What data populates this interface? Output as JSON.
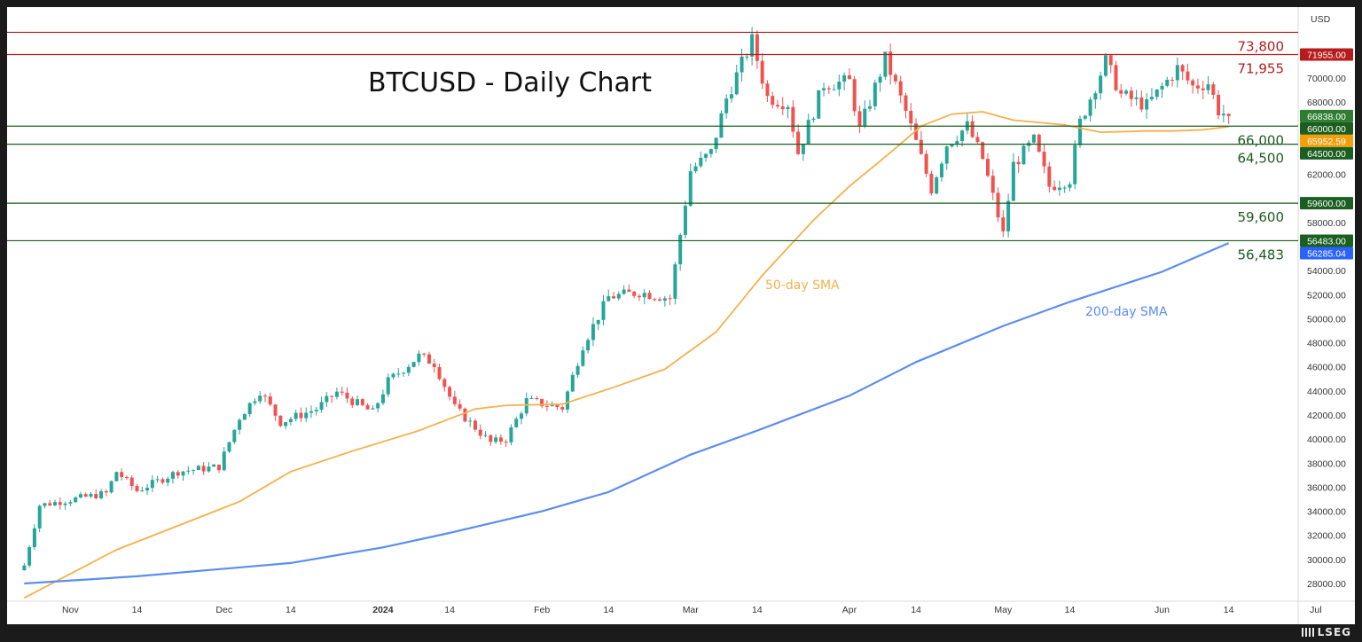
{
  "title": "BTCUSD - Daily Chart",
  "currency": "USD",
  "sma_labels": {
    "sma50": "50-day SMA",
    "sma200": "200-day SMA"
  },
  "colors": {
    "up": "#26a69a",
    "down": "#ef5350",
    "sma50": "#f5b04c",
    "sma200": "#5b8def",
    "resistance": "#b71c1c",
    "support": "#1b5e20"
  },
  "footer": {
    "brand": "LSEG"
  },
  "chart_data": {
    "type": "candlestick",
    "title": "BTCUSD - Daily Chart",
    "y_axis": {
      "unit": "USD",
      "range": [
        26600,
        75600
      ],
      "ticks": [
        "28000.00",
        "30000.00",
        "32000.00",
        "34000.00",
        "36000.00",
        "38000.00",
        "40000.00",
        "42000.00",
        "44000.00",
        "46000.00",
        "48000.00",
        "50000.00",
        "52000.00",
        "54000.00",
        "58000.00",
        "62000.00",
        "68000.00",
        "70000.00"
      ]
    },
    "x_axis": {
      "labels": [
        "Nov",
        "14",
        "Dec",
        "14",
        "2024",
        "14",
        "Feb",
        "14",
        "Mar",
        "14",
        "Apr",
        "14",
        "May",
        "14",
        "Jun",
        "14",
        "Jul"
      ]
    },
    "price_path": [
      {
        "date": "2023-10-23",
        "close": 29500
      },
      {
        "date": "2023-10-26",
        "close": 34500
      },
      {
        "date": "2023-11-08",
        "close": 35500
      },
      {
        "date": "2023-11-10",
        "close": 37300
      },
      {
        "date": "2023-11-14",
        "close": 35700
      },
      {
        "date": "2023-11-22",
        "close": 37300
      },
      {
        "date": "2023-11-30",
        "close": 37700
      },
      {
        "date": "2023-12-04",
        "close": 41800
      },
      {
        "date": "2023-12-08",
        "close": 44000
      },
      {
        "date": "2023-12-12",
        "close": 41400
      },
      {
        "date": "2023-12-19",
        "close": 42500
      },
      {
        "date": "2023-12-23",
        "close": 43900
      },
      {
        "date": "2023-12-30",
        "close": 42200
      },
      {
        "date": "2024-01-02",
        "close": 44800
      },
      {
        "date": "2024-01-08",
        "close": 46900
      },
      {
        "date": "2024-01-11",
        "close": 46300
      },
      {
        "date": "2024-01-15",
        "close": 42600
      },
      {
        "date": "2024-01-22",
        "close": 39700
      },
      {
        "date": "2024-01-25",
        "close": 40000
      },
      {
        "date": "2024-01-29",
        "close": 43200
      },
      {
        "date": "2024-02-05",
        "close": 42600
      },
      {
        "date": "2024-02-09",
        "close": 47800
      },
      {
        "date": "2024-02-14",
        "close": 51800
      },
      {
        "date": "2024-02-20",
        "close": 52200
      },
      {
        "date": "2024-02-26",
        "close": 51700
      },
      {
        "date": "2024-02-28",
        "close": 57000
      },
      {
        "date": "2024-03-01",
        "close": 62300
      },
      {
        "date": "2024-03-05",
        "close": 63800
      },
      {
        "date": "2024-03-08",
        "close": 68300
      },
      {
        "date": "2024-03-13",
        "close": 73100
      },
      {
        "date": "2024-03-16",
        "close": 68400
      },
      {
        "date": "2024-03-20",
        "close": 67900
      },
      {
        "date": "2024-03-22",
        "close": 63800
      },
      {
        "date": "2024-03-27",
        "close": 69500
      },
      {
        "date": "2024-04-01",
        "close": 69700
      },
      {
        "date": "2024-04-03",
        "close": 65700
      },
      {
        "date": "2024-04-08",
        "close": 71600
      },
      {
        "date": "2024-04-12",
        "close": 67200
      },
      {
        "date": "2024-04-17",
        "close": 60800
      },
      {
        "date": "2024-04-20",
        "close": 64500
      },
      {
        "date": "2024-04-24",
        "close": 66000
      },
      {
        "date": "2024-04-27",
        "close": 63300
      },
      {
        "date": "2024-05-01",
        "close": 57000
      },
      {
        "date": "2024-05-03",
        "close": 62800
      },
      {
        "date": "2024-05-07",
        "close": 64800
      },
      {
        "date": "2024-05-10",
        "close": 61000
      },
      {
        "date": "2024-05-14",
        "close": 61600
      },
      {
        "date": "2024-05-16",
        "close": 66300
      },
      {
        "date": "2024-05-21",
        "close": 71400
      },
      {
        "date": "2024-05-24",
        "close": 68600
      },
      {
        "date": "2024-05-29",
        "close": 67700
      },
      {
        "date": "2024-06-04",
        "close": 70800
      },
      {
        "date": "2024-06-07",
        "close": 69300
      },
      {
        "date": "2024-06-10",
        "close": 69600
      },
      {
        "date": "2024-06-12",
        "close": 67300
      },
      {
        "date": "2024-06-14",
        "close": 66838
      }
    ],
    "series": [
      {
        "name": "50-day SMA",
        "color": "#f5b04c",
        "points": [
          {
            "date": "2023-10-23",
            "value": 26800
          },
          {
            "date": "2023-11-10",
            "value": 30800
          },
          {
            "date": "2023-11-22",
            "value": 32800
          },
          {
            "date": "2023-12-04",
            "value": 34800
          },
          {
            "date": "2023-12-14",
            "value": 37300
          },
          {
            "date": "2023-12-26",
            "value": 39000
          },
          {
            "date": "2024-01-08",
            "value": 40700
          },
          {
            "date": "2024-01-19",
            "value": 42500
          },
          {
            "date": "2024-01-25",
            "value": 42800
          },
          {
            "date": "2024-02-05",
            "value": 42900
          },
          {
            "date": "2024-02-15",
            "value": 44300
          },
          {
            "date": "2024-02-25",
            "value": 45800
          },
          {
            "date": "2024-03-06",
            "value": 48900
          },
          {
            "date": "2024-03-15",
            "value": 53600
          },
          {
            "date": "2024-03-25",
            "value": 58200
          },
          {
            "date": "2024-04-01",
            "value": 61000
          },
          {
            "date": "2024-04-09",
            "value": 63800
          },
          {
            "date": "2024-04-15",
            "value": 66000
          },
          {
            "date": "2024-04-21",
            "value": 67000
          },
          {
            "date": "2024-04-27",
            "value": 67200
          },
          {
            "date": "2024-05-03",
            "value": 66500
          },
          {
            "date": "2024-05-13",
            "value": 66100
          },
          {
            "date": "2024-05-20",
            "value": 65500
          },
          {
            "date": "2024-05-29",
            "value": 65600
          },
          {
            "date": "2024-06-03",
            "value": 65600
          },
          {
            "date": "2024-06-09",
            "value": 65700
          },
          {
            "date": "2024-06-14",
            "value": 65952.59
          }
        ]
      },
      {
        "name": "200-day SMA",
        "color": "#5b8def",
        "points": [
          {
            "date": "2023-10-23",
            "value": 28000
          },
          {
            "date": "2023-11-14",
            "value": 28600
          },
          {
            "date": "2023-12-14",
            "value": 29700
          },
          {
            "date": "2024-01-01",
            "value": 31000
          },
          {
            "date": "2024-01-14",
            "value": 32200
          },
          {
            "date": "2024-02-01",
            "value": 34000
          },
          {
            "date": "2024-02-14",
            "value": 35600
          },
          {
            "date": "2024-03-01",
            "value": 38700
          },
          {
            "date": "2024-03-14",
            "value": 40700
          },
          {
            "date": "2024-04-01",
            "value": 43600
          },
          {
            "date": "2024-04-14",
            "value": 46400
          },
          {
            "date": "2024-05-01",
            "value": 49400
          },
          {
            "date": "2024-05-14",
            "value": 51400
          },
          {
            "date": "2024-06-01",
            "value": 53900
          },
          {
            "date": "2024-06-14",
            "value": 56285.04
          }
        ]
      }
    ],
    "levels": [
      {
        "value": 73800,
        "label": "73,800",
        "kind": "resistance"
      },
      {
        "value": 71955,
        "label": "71,955",
        "kind": "resistance"
      },
      {
        "value": 66000,
        "label": "66,000",
        "kind": "support"
      },
      {
        "value": 64500,
        "label": "64,500",
        "kind": "support"
      },
      {
        "value": 59600,
        "label": "59,600",
        "kind": "support"
      },
      {
        "value": 56483,
        "label": "56,483",
        "kind": "support"
      }
    ],
    "price_tags": [
      {
        "value": 71955,
        "text": "71955.00",
        "color": "#b71c1c"
      },
      {
        "value": 66838,
        "text": "66838.00",
        "color": "#2e7d32"
      },
      {
        "value": 66000,
        "text": "66000.00",
        "color": "#1b5e20"
      },
      {
        "value": 65952.59,
        "text": "65952.59",
        "color": "#f59e0b"
      },
      {
        "value": 64500,
        "text": "64500.00",
        "color": "#1b5e20"
      },
      {
        "value": 59600,
        "text": "59600.00",
        "color": "#1b5e20"
      },
      {
        "value": 56483,
        "text": "56483.00",
        "color": "#1b5e20"
      },
      {
        "value": 56285.04,
        "text": "56285.04",
        "color": "#2962ff"
      }
    ]
  }
}
